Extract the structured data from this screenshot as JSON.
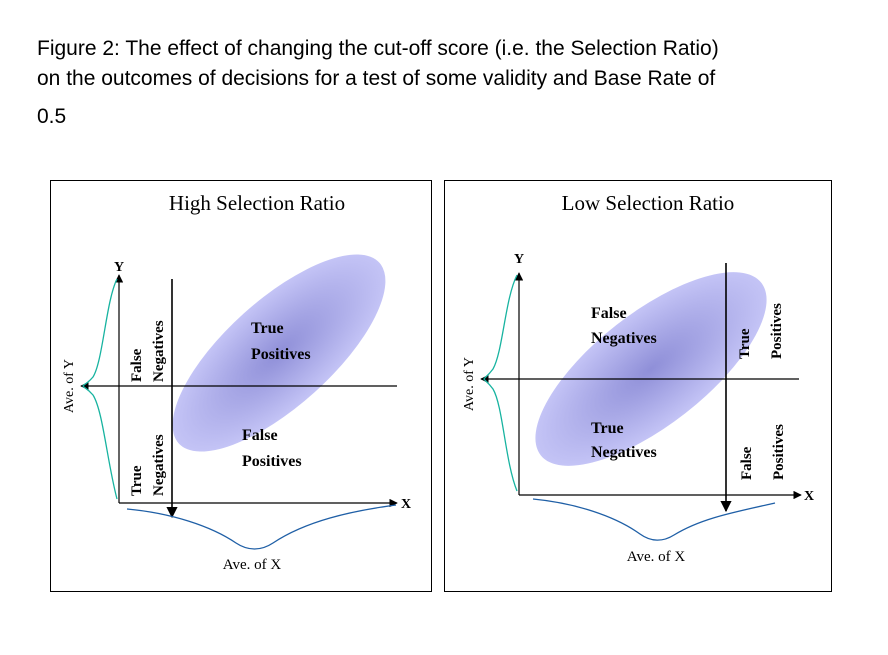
{
  "caption": {
    "line1": "Figure 2: The effect of changing the cut-off score (i.e. the Selection Ratio)",
    "line2": "on the outcomes of decisions for a test of some validity and Base Rate of",
    "line3": "0.5"
  },
  "left_panel": {
    "title": "High Selection Ratio",
    "y_axis": "Y",
    "x_axis": "X",
    "ave_y": "Ave. of Y",
    "ave_x": "Ave. of X",
    "false_negatives_1": "False",
    "false_negatives_2": "Negatives",
    "true_negatives_1": "True",
    "true_negatives_2": "Negatives",
    "true_positives_1": "True",
    "true_positives_2": "Positives",
    "false_positives_1": "False",
    "false_positives_2": "Positives"
  },
  "right_panel": {
    "title": "Low Selection Ratio",
    "y_axis": "Y",
    "x_axis": "X",
    "ave_y": "Ave. of Y",
    "ave_x": "Ave. of X",
    "false_negatives_1": "False",
    "false_negatives_2": "Negatives",
    "true_negatives_1": "True",
    "true_negatives_2": "Negatives",
    "true_positives_1": "True",
    "true_positives_2": "Positives",
    "false_positives_1": "False",
    "false_positives_2": "Positives"
  },
  "colors": {
    "ellipse_center": "#8f8fd8",
    "ellipse_edge": "#c4c4f6",
    "y_distribution": "#17b3a0",
    "x_distribution": "#1f5fa6"
  }
}
